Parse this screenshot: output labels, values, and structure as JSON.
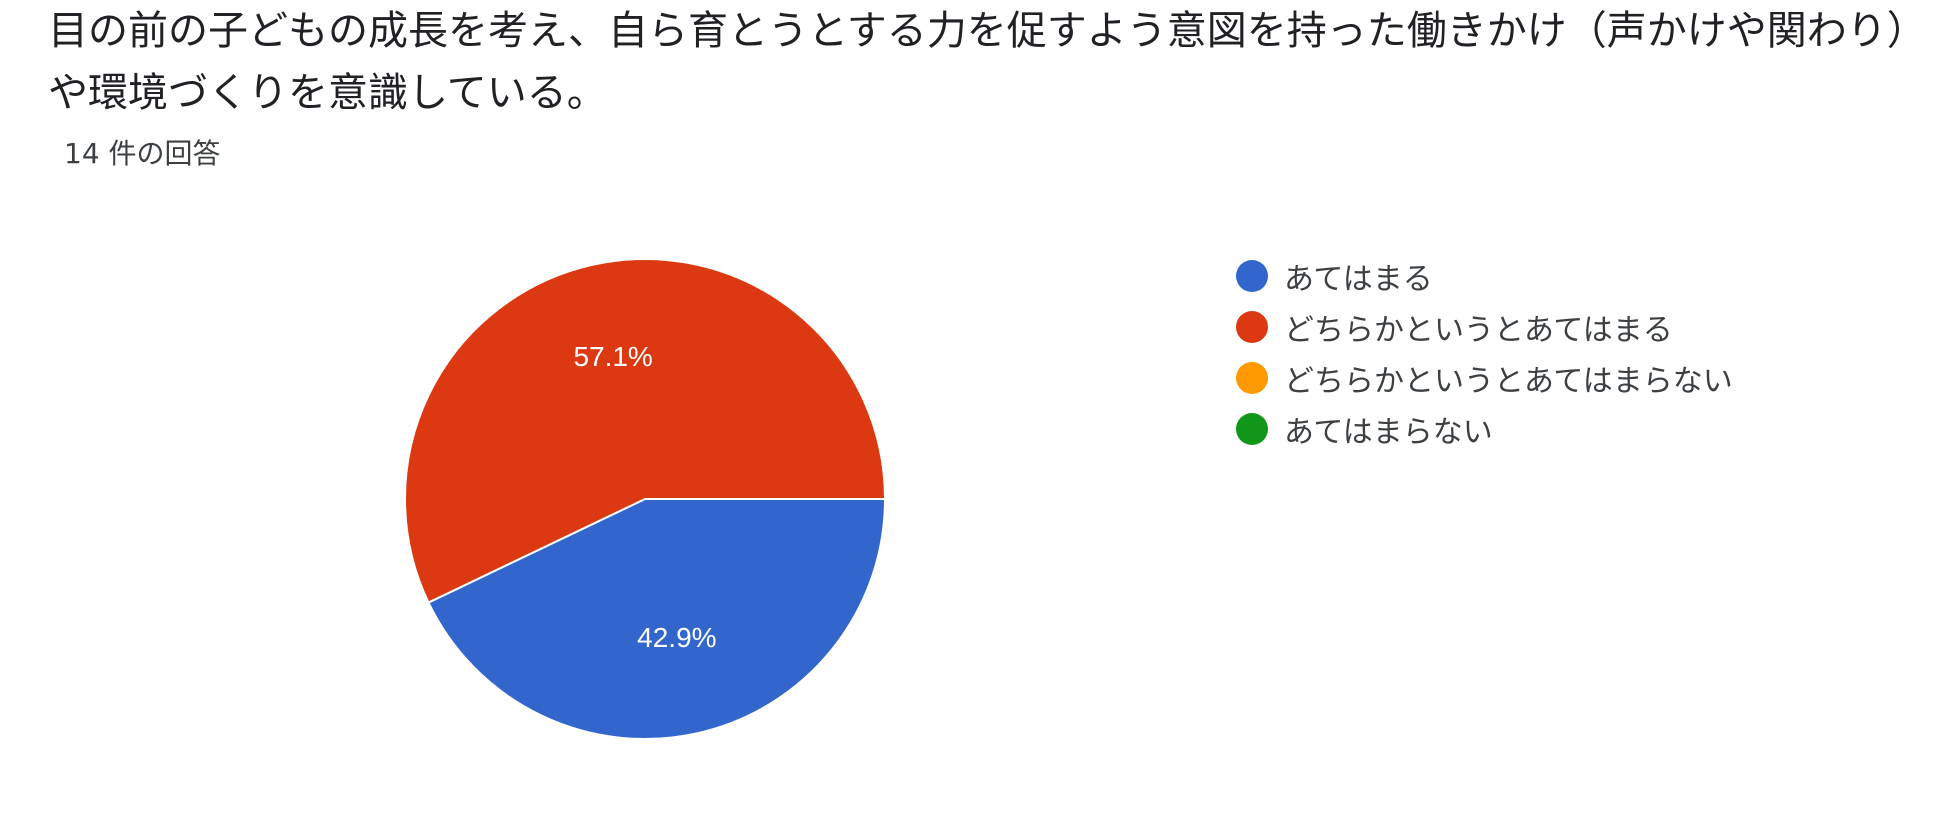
{
  "question": {
    "title": "目の前の子どもの成長を考え、自ら育とうとする力を促すよう意図を持った働きかけ（声かけや関わり）や環境づくりを意識している。",
    "response_count": "14 件の回答"
  },
  "chart_data": {
    "type": "pie",
    "title": "",
    "categories": [
      "あてはまる",
      "どちらかというとあてはまる",
      "どちらかというとあてはまらない",
      "あてはまらない"
    ],
    "values": [
      42.9,
      57.1,
      0,
      0
    ],
    "labels": [
      "42.9%",
      "57.1%",
      "",
      ""
    ],
    "colors": [
      "#3366cc",
      "#dc3912",
      "#ff9900",
      "#109618"
    ],
    "legend_position": "right"
  }
}
